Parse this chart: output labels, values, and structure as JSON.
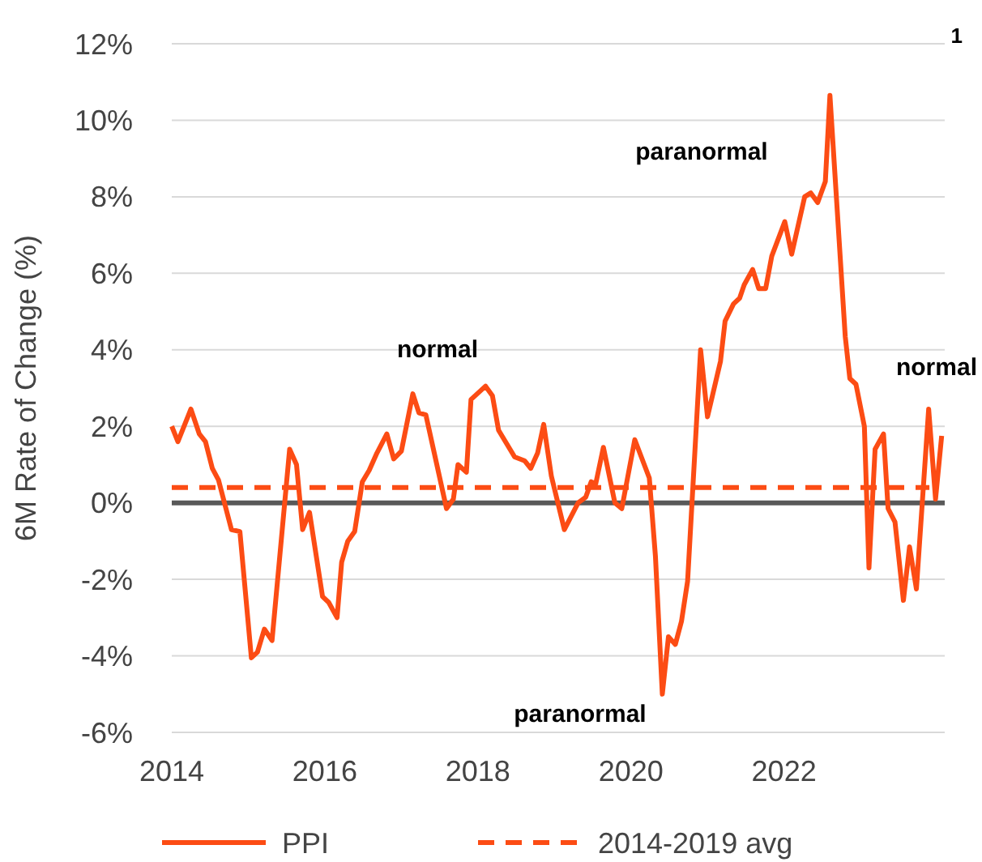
{
  "chart_data": {
    "type": "line",
    "ylabel": "6M Rate of Change (%)",
    "xlim": [
      2014,
      2024.1
    ],
    "xticks": [
      2014,
      2016,
      2018,
      2020,
      2022
    ],
    "ylim": [
      -6,
      12
    ],
    "yticks": [
      {
        "value": -6,
        "label": "-6%"
      },
      {
        "value": -4,
        "label": "-4%"
      },
      {
        "value": -2,
        "label": "-2%"
      },
      {
        "value": 0,
        "label": "0%"
      },
      {
        "value": 2,
        "label": "2%"
      },
      {
        "value": 4,
        "label": "4%"
      },
      {
        "value": 6,
        "label": "6%"
      },
      {
        "value": 8,
        "label": "8%"
      },
      {
        "value": 10,
        "label": "10%"
      },
      {
        "value": 12,
        "label": "12%"
      }
    ],
    "grid": "y",
    "legend": "bottom",
    "ref_lines": [
      {
        "axis": "y",
        "value": 0,
        "color": "#595959"
      }
    ],
    "series": [
      {
        "name": "PPI",
        "color": "#fc4c14",
        "line_style": "solid",
        "x": [
          2014.0,
          2014.08,
          2014.25,
          2014.36,
          2014.44,
          2014.53,
          2014.61,
          2014.78,
          2014.89,
          2015.04,
          2015.12,
          2015.21,
          2015.31,
          2015.54,
          2015.63,
          2015.71,
          2015.8,
          2015.97,
          2016.05,
          2016.16,
          2016.22,
          2016.3,
          2016.39,
          2016.49,
          2016.58,
          2016.68,
          2016.81,
          2016.9,
          2017.0,
          2017.15,
          2017.23,
          2017.32,
          2017.59,
          2017.68,
          2017.74,
          2017.85,
          2017.91,
          2018.1,
          2018.19,
          2018.27,
          2018.48,
          2018.61,
          2018.69,
          2018.78,
          2018.86,
          2018.96,
          2019.13,
          2019.31,
          2019.41,
          2019.48,
          2019.54,
          2019.64,
          2019.79,
          2019.88,
          2020.05,
          2020.24,
          2020.32,
          2020.41,
          2020.49,
          2020.58,
          2020.66,
          2020.74,
          2020.91,
          2021.0,
          2021.17,
          2021.23,
          2021.34,
          2021.42,
          2021.48,
          2021.59,
          2021.67,
          2021.76,
          2021.84,
          2022.01,
          2022.1,
          2022.27,
          2022.35,
          2022.44,
          2022.54,
          2022.6,
          2022.8,
          2022.86,
          2022.94,
          2023.05,
          2023.11,
          2023.19,
          2023.3,
          2023.36,
          2023.45,
          2023.56,
          2023.64,
          2023.73,
          2023.89,
          2023.98,
          2024.06
        ],
        "values": [
          2.0,
          1.6,
          2.45,
          1.8,
          1.6,
          0.9,
          0.6,
          -0.7,
          -0.75,
          -4.05,
          -3.9,
          -3.3,
          -3.6,
          1.4,
          1.0,
          -0.7,
          -0.25,
          -2.45,
          -2.6,
          -3.0,
          -1.55,
          -1.0,
          -0.75,
          0.55,
          0.85,
          1.3,
          1.8,
          1.15,
          1.35,
          2.85,
          2.35,
          2.3,
          -0.15,
          0.1,
          1.0,
          0.8,
          2.7,
          3.05,
          2.8,
          1.9,
          1.2,
          1.1,
          0.9,
          1.3,
          2.05,
          0.7,
          -0.7,
          0.0,
          0.15,
          0.55,
          0.5,
          1.45,
          0.0,
          -0.15,
          1.65,
          0.65,
          -1.4,
          -5.0,
          -3.5,
          -3.7,
          -3.1,
          -2.05,
          4.0,
          2.25,
          3.7,
          4.75,
          5.2,
          5.35,
          5.7,
          6.1,
          5.6,
          5.6,
          6.45,
          7.35,
          6.5,
          8.0,
          8.1,
          7.85,
          8.4,
          10.65,
          4.35,
          3.25,
          3.1,
          2.0,
          -1.7,
          1.4,
          1.8,
          -0.15,
          -0.5,
          -2.55,
          -1.15,
          -2.25,
          2.45,
          0.1,
          1.75
        ]
      },
      {
        "name": "2014-2019 avg",
        "color": "#fc4c14",
        "line_style": "dashed",
        "x": [
          2014.0,
          2023.9
        ],
        "values": [
          0.4,
          0.4
        ]
      }
    ],
    "annotations": [
      "normal",
      "paranormal",
      "paranormal",
      "normal",
      "1"
    ]
  }
}
